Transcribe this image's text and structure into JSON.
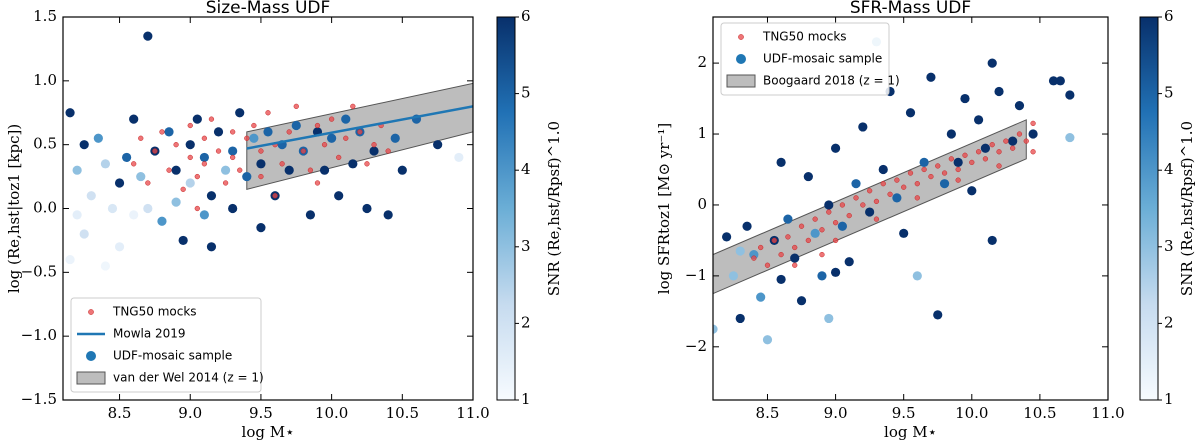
{
  "chart_data": [
    {
      "type": "scatter",
      "title": "Size-Mass UDF",
      "x_label": "log M⋆",
      "y_label": "log (Re,hst|toz1 [kpc])",
      "colorbar_label": "SNR (Re,hst/Rpsf)^1.0",
      "colormap": [
        "#f7fbff",
        "#c6dbef",
        "#6baed6",
        "#2171b5",
        "#08306b"
      ],
      "clim": [
        1,
        6
      ],
      "cticks": [
        1,
        2,
        3,
        4,
        5,
        6
      ],
      "legend": "lower left",
      "xlim": [
        8.1,
        11.0
      ],
      "ylim": [
        -1.5,
        1.5
      ],
      "xticks": [
        {
          "value": 8.5,
          "label": "8.5"
        },
        {
          "value": 9,
          "label": "9.0"
        },
        {
          "value": 9.5,
          "label": "9.5"
        },
        {
          "value": 10,
          "label": "10.0"
        },
        {
          "value": 10.5,
          "label": "10.5"
        },
        {
          "value": 11,
          "label": "11.0"
        }
      ],
      "yticks": [
        {
          "value": -1.5,
          "label": "−1.5"
        },
        {
          "value": -1,
          "label": "−1.0"
        },
        {
          "value": -0.5,
          "label": "−0.5"
        },
        {
          "value": 0,
          "label": "0.0"
        },
        {
          "value": 0.5,
          "label": "0.5"
        },
        {
          "value": 1,
          "label": "1.0"
        },
        {
          "value": 1.5,
          "label": "1.5"
        }
      ],
      "series": [
        {
          "name": "van der Wel 2014 (z = 1)",
          "kind": "band",
          "color": "#999999",
          "x": [
            9.4,
            11.0
          ],
          "lower": [
            0.15,
            0.6
          ],
          "upper": [
            0.6,
            0.98
          ]
        },
        {
          "name": "UDF-mosaic sample",
          "kind": "scatter",
          "color": "#1f77b4",
          "x": [
            8.15,
            8.25,
            8.2,
            8.3,
            8.2,
            8.25,
            8.15,
            8.35,
            8.4,
            8.45,
            8.5,
            8.55,
            8.5,
            8.6,
            8.65,
            8.7,
            8.7,
            8.75,
            8.8,
            8.85,
            8.9,
            8.9,
            8.95,
            9.0,
            9.0,
            9.05,
            9.1,
            9.1,
            9.15,
            9.2,
            9.25,
            9.3,
            9.3,
            9.35,
            9.4,
            9.45,
            9.5,
            9.55,
            9.6,
            9.65,
            9.7,
            9.75,
            9.8,
            9.85,
            9.9,
            9.95,
            10.0,
            10.05,
            10.1,
            10.15,
            10.2,
            10.25,
            10.3,
            10.4,
            10.45,
            10.5,
            10.6,
            10.75,
            10.9,
            9.15,
            8.4,
            8.6,
            9.5
          ],
          "values": [
            0.75,
            0.5,
            0.3,
            0.1,
            -0.05,
            -0.2,
            -0.4,
            0.55,
            0.35,
            0.0,
            0.2,
            0.4,
            -0.3,
            0.7,
            0.25,
            1.35,
            0.0,
            0.45,
            -0.1,
            0.6,
            0.3,
            0.05,
            -0.25,
            0.5,
            0.2,
            0.7,
            0.4,
            -0.05,
            0.1,
            0.6,
            0.3,
            0.45,
            0.0,
            0.75,
            0.25,
            0.55,
            0.35,
            0.6,
            0.1,
            0.5,
            0.3,
            0.65,
            0.45,
            -0.05,
            0.6,
            0.3,
            0.55,
            0.1,
            0.7,
            0.35,
            0.6,
            0.0,
            0.45,
            -0.05,
            0.55,
            0.3,
            0.7,
            0.5,
            0.4,
            -0.3,
            -0.45,
            -0.05,
            -0.15
          ],
          "snr": [
            6,
            6,
            3,
            2,
            1.5,
            2,
            1.3,
            4,
            2.5,
            1.8,
            6,
            5,
            1.5,
            6,
            3,
            6,
            2,
            6,
            4,
            5,
            6,
            3,
            6,
            6,
            2.5,
            6,
            5,
            4,
            6,
            6,
            3,
            5,
            6,
            6,
            5,
            4,
            6,
            5,
            6,
            5,
            6,
            5,
            5,
            6,
            6,
            6,
            5,
            6,
            5,
            6,
            5,
            6,
            6,
            6,
            5,
            6,
            5,
            6,
            1.5,
            6,
            1.2,
            1.3,
            6
          ]
        },
        {
          "name": "TNG50 mocks",
          "kind": "scatter",
          "color": "#e8474a",
          "x": [
            8.6,
            8.65,
            8.7,
            8.75,
            8.8,
            8.85,
            8.9,
            8.95,
            9.0,
            9.0,
            9.05,
            9.1,
            9.1,
            9.15,
            9.2,
            9.25,
            9.3,
            9.3,
            9.35,
            9.4,
            9.45,
            9.5,
            9.5,
            9.55,
            9.6,
            9.65,
            9.7,
            9.75,
            9.8,
            9.85,
            9.9,
            9.95,
            10.0,
            10.05,
            10.1,
            10.15,
            10.2,
            10.25,
            10.3,
            10.35,
            10.4,
            9.05,
            9.6,
            9.9
          ],
          "values": [
            0.35,
            0.55,
            0.2,
            0.45,
            0.6,
            0.3,
            0.5,
            0.15,
            0.4,
            0.65,
            0.25,
            0.55,
            0.35,
            0.7,
            0.45,
            0.2,
            0.6,
            0.4,
            0.3,
            0.55,
            0.65,
            0.45,
            0.25,
            0.75,
            0.5,
            0.35,
            0.6,
            0.8,
            0.45,
            0.3,
            0.65,
            0.5,
            0.7,
            0.4,
            0.55,
            0.8,
            0.6,
            0.35,
            0.5,
            0.65,
            0.45,
            0.0,
            0.1,
            0.2
          ]
        },
        {
          "name": "Mowla 2019",
          "kind": "line",
          "color": "#1f77b4",
          "x": [
            9.4,
            11.0
          ],
          "values": [
            0.47,
            0.8
          ]
        }
      ]
    },
    {
      "type": "scatter",
      "title": "SFR-Mass UDF",
      "x_label": "log M⋆",
      "y_label": "log SFRtoz1 [M⊙ yr⁻¹]",
      "colorbar_label": "SNR (Re,hst/Rpsf)^1.0",
      "colormap": [
        "#f7fbff",
        "#c6dbef",
        "#6baed6",
        "#2171b5",
        "#08306b"
      ],
      "clim": [
        1,
        6
      ],
      "cticks": [
        1,
        2,
        3,
        4,
        5,
        6
      ],
      "legend": "upper left",
      "xlim": [
        8.1,
        11.0
      ],
      "ylim": [
        -2.75,
        2.65
      ],
      "xticks": [
        {
          "value": 8.5,
          "label": "8.5"
        },
        {
          "value": 9,
          "label": "9.0"
        },
        {
          "value": 9.5,
          "label": "9.5"
        },
        {
          "value": 10,
          "label": "10.0"
        },
        {
          "value": 10.5,
          "label": "10.5"
        },
        {
          "value": 11,
          "label": "11.0"
        }
      ],
      "yticks": [
        {
          "value": -2,
          "label": "−2"
        },
        {
          "value": -1,
          "label": "−1"
        },
        0,
        1,
        2
      ],
      "series": [
        {
          "name": "Boogaard 2018 (z = 1)",
          "kind": "band",
          "color": "#999999",
          "x": [
            8.1,
            10.4
          ],
          "lower": [
            -1.25,
            0.65
          ],
          "upper": [
            -0.7,
            1.2
          ]
        },
        {
          "name": "UDF-mosaic sample",
          "kind": "scatter",
          "color": "#1f77b4",
          "x": [
            8.1,
            8.2,
            8.25,
            8.3,
            8.35,
            8.4,
            8.45,
            8.5,
            8.55,
            8.6,
            8.6,
            8.65,
            8.7,
            8.75,
            8.8,
            8.85,
            8.9,
            8.95,
            8.95,
            9.0,
            9.05,
            9.1,
            9.15,
            9.2,
            9.25,
            9.3,
            9.35,
            9.4,
            9.45,
            9.5,
            9.55,
            9.6,
            9.65,
            9.7,
            9.75,
            9.8,
            9.85,
            9.9,
            9.95,
            10.0,
            10.05,
            10.1,
            10.15,
            10.15,
            10.2,
            10.3,
            10.35,
            10.45,
            10.6,
            10.65,
            10.72,
            10.72,
            9.0,
            8.3
          ],
          "values": [
            -1.75,
            -0.45,
            -1.0,
            -1.6,
            -0.3,
            -0.7,
            -1.3,
            -1.9,
            -0.5,
            0.6,
            -1.05,
            -0.2,
            -0.75,
            -1.35,
            0.4,
            -0.4,
            -1.0,
            0.0,
            -1.6,
            0.8,
            -0.3,
            -0.8,
            0.3,
            1.1,
            -0.1,
            2.3,
            0.5,
            1.6,
            0.1,
            -0.4,
            1.3,
            -1.0,
            0.6,
            1.8,
            -1.55,
            0.3,
            1.0,
            0.6,
            1.5,
            0.2,
            1.2,
            0.8,
            2.0,
            -0.5,
            1.6,
            0.9,
            1.4,
            1.0,
            1.75,
            1.75,
            1.55,
            0.95,
            -0.95,
            -0.65
          ],
          "snr": [
            3,
            6,
            3,
            6,
            6,
            4,
            4,
            3,
            6,
            6,
            6,
            5,
            6,
            6,
            6,
            4,
            5,
            6,
            3,
            6,
            5,
            6,
            5,
            6,
            6,
            3,
            6,
            6,
            5,
            6,
            6,
            3,
            5,
            6,
            6,
            5,
            6,
            6,
            6,
            6,
            6,
            6,
            6,
            6,
            6,
            6,
            6,
            6,
            6,
            6,
            6,
            3,
            6,
            3
          ]
        },
        {
          "name": "TNG50 mocks",
          "kind": "scatter",
          "color": "#e8474a",
          "x": [
            8.4,
            8.45,
            8.5,
            8.55,
            8.6,
            8.65,
            8.7,
            8.75,
            8.8,
            8.85,
            8.9,
            8.95,
            9.0,
            9.05,
            9.1,
            9.15,
            9.2,
            9.25,
            9.3,
            9.35,
            9.4,
            9.45,
            9.5,
            9.55,
            9.6,
            9.65,
            9.7,
            9.75,
            9.8,
            9.85,
            9.9,
            9.95,
            10.0,
            10.05,
            10.1,
            10.15,
            10.2,
            10.25,
            10.3,
            10.35,
            10.4,
            10.45,
            8.7,
            9.0,
            9.3,
            9.6,
            9.9,
            10.2,
            10.45,
            8.9
          ],
          "values": [
            -0.75,
            -0.6,
            -0.85,
            -0.5,
            -0.7,
            -0.45,
            -0.6,
            -0.3,
            -0.5,
            -0.2,
            -0.35,
            -0.1,
            -0.25,
            0.0,
            -0.15,
            0.1,
            0.0,
            0.2,
            0.05,
            0.3,
            0.15,
            0.35,
            0.25,
            0.45,
            0.3,
            0.5,
            0.4,
            0.55,
            0.45,
            0.65,
            0.5,
            0.7,
            0.6,
            0.75,
            0.65,
            0.85,
            0.75,
            0.9,
            0.8,
            1.0,
            0.9,
            1.15,
            -0.85,
            -0.5,
            -0.2,
            0.1,
            0.35,
            0.55,
            0.75,
            -0.7
          ]
        }
      ]
    }
  ]
}
